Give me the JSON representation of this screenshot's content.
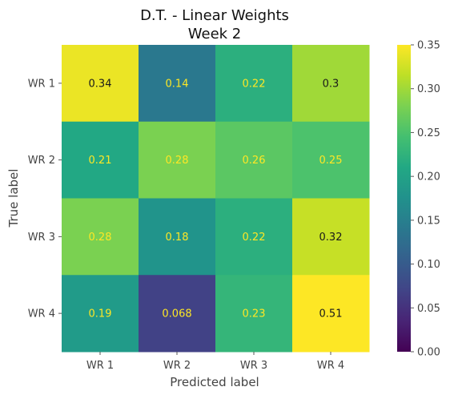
{
  "chart_data": {
    "type": "heatmap",
    "title_line1": "D.T. - Linear Weights",
    "title_line2": "Week 2",
    "xlabel": "Predicted label",
    "ylabel": "True label",
    "x_categories": [
      "WR 1",
      "WR 2",
      "WR 3",
      "WR 4"
    ],
    "y_categories": [
      "WR 1",
      "WR 2",
      "WR 3",
      "WR 4"
    ],
    "values": [
      [
        0.34,
        0.14,
        0.22,
        0.3
      ],
      [
        0.21,
        0.28,
        0.26,
        0.25
      ],
      [
        0.28,
        0.18,
        0.22,
        0.32
      ],
      [
        0.19,
        0.068,
        0.23,
        0.51
      ]
    ],
    "value_labels": [
      [
        "0.34",
        "0.14",
        "0.22",
        "0.3"
      ],
      [
        "0.21",
        "0.28",
        "0.26",
        "0.25"
      ],
      [
        "0.28",
        "0.18",
        "0.22",
        "0.32"
      ],
      [
        "0.19",
        "0.068",
        "0.23",
        "0.51"
      ]
    ],
    "colorscale": "viridis",
    "vmin": 0.0,
    "vmax": 0.35,
    "colorbar_ticks": [
      "0.00",
      "0.05",
      "0.10",
      "0.15",
      "0.20",
      "0.25",
      "0.30",
      "0.35"
    ],
    "text_color_light": "#fde725",
    "text_color_dark": "#1a1a1a"
  }
}
